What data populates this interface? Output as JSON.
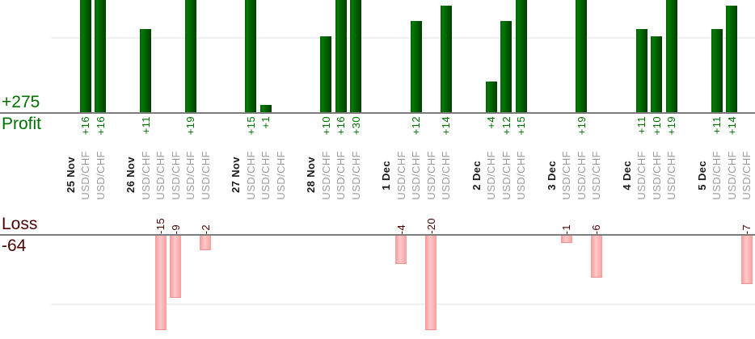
{
  "labels": {
    "profit_total": "+275",
    "profit": "Profit",
    "loss": "Loss",
    "loss_total": "-64"
  },
  "colors": {
    "profit_bar": "#006400",
    "loss_bar": "#ffabab",
    "profit_text": "#007000",
    "loss_text": "#4d0101",
    "instrument_text": "#9c9c9c",
    "axis_line": "#7d7d7d",
    "grid_line": "#efefef"
  },
  "chart_data": {
    "type": "bar",
    "title": "",
    "xlabel": "",
    "ylabel_top": "Profit",
    "ylabel_bottom": "Loss",
    "profit_total": 275,
    "loss_total": -64,
    "instrument": "USD/CHF",
    "grid": "horizontal-faint",
    "positive_axis_clip": 15,
    "groups": [
      {
        "date": "25 Nov",
        "trades": [
          16,
          16
        ]
      },
      {
        "date": "26 Nov",
        "trades": [
          11,
          -15,
          -9,
          19,
          -2
        ]
      },
      {
        "date": "27 Nov",
        "trades": [
          15,
          1,
          0
        ]
      },
      {
        "date": "28 Nov",
        "trades": [
          10,
          16,
          30
        ]
      },
      {
        "date": "1 Dec",
        "trades": [
          -4,
          12,
          -20,
          14
        ]
      },
      {
        "date": "2 Dec",
        "trades": [
          4,
          12,
          15
        ]
      },
      {
        "date": "3 Dec",
        "trades": [
          -1,
          19,
          -6
        ]
      },
      {
        "date": "4 Dec",
        "trades": [
          11,
          10,
          19
        ]
      },
      {
        "date": "5 Dec",
        "trades": [
          11,
          14,
          -7
        ]
      }
    ]
  }
}
